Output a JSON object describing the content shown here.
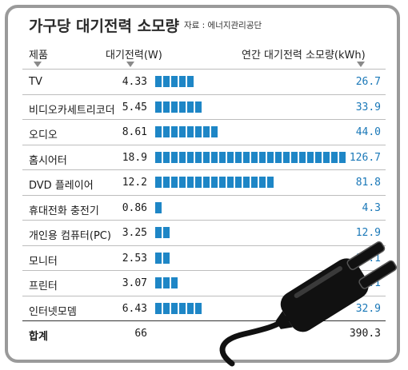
{
  "title": "가구당 대기전력 소모량",
  "source": "자료 : 에너지관리공단",
  "headers": {
    "product": "제품",
    "standby_power": "대기전력(W)",
    "annual_usage": "연간 대기전력 소모량(kWh)"
  },
  "colors": {
    "bar": "#1e86c6",
    "kwh_text": "#1a78b8",
    "frame": "#9a9a9a"
  },
  "icons": [
    "plug-icon"
  ],
  "chart_data": {
    "type": "bar",
    "orientation": "horizontal",
    "title": "가구당 대기전력 소모량",
    "categories": [
      "TV",
      "비디오카세트리코더",
      "오디오",
      "홈시어터",
      "DVD 플레이어",
      "휴대전화 충전기",
      "개인용 컴퓨터(PC)",
      "모니터",
      "프린터",
      "인터넷모뎀"
    ],
    "standby_w": [
      "4.33",
      "5.45",
      "8.61",
      "18.9",
      "12.2",
      "0.86",
      "3.25",
      "2.53",
      "3.07",
      "6.43"
    ],
    "kwh": [
      "26.7",
      "33.9",
      "44.0",
      "126.7",
      "81.8",
      "4.3",
      "12.9",
      "10.1",
      "17.1",
      "32.9"
    ],
    "total_label": "합계",
    "total_w": "66",
    "total_kwh": "390.3"
  }
}
